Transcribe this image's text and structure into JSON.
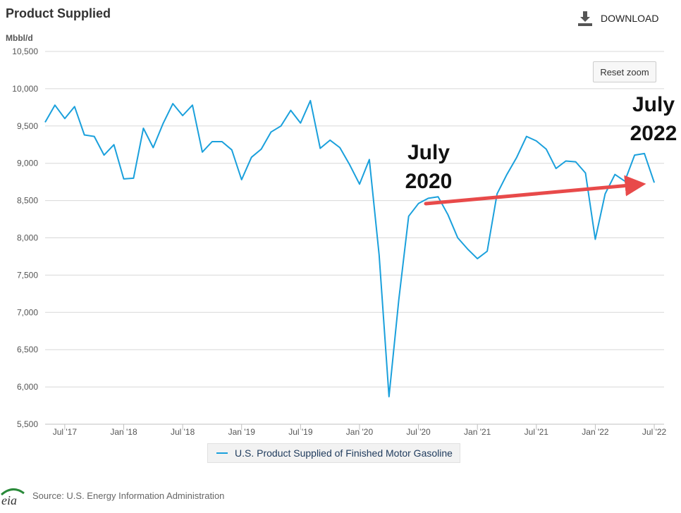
{
  "header": {
    "title": "Product Supplied",
    "download_label": "DOWNLOAD",
    "reset_zoom_label": "Reset zoom"
  },
  "footer": {
    "source": "Source: U.S. Energy Information Administration",
    "logo_icon": "eia-logo-icon"
  },
  "legend": {
    "entries": [
      {
        "label": "U.S. Product Supplied of Finished Motor Gasoline",
        "color": "#1aa0dc"
      }
    ]
  },
  "annotations": {
    "left_top": "July",
    "left_bottom": "2020",
    "right_top": "July",
    "right_bottom": "2022",
    "arrow_color": "#e84a4a"
  },
  "chart_data": {
    "type": "line",
    "ylabel": "Mbbl/d",
    "ylim": [
      5500,
      10500
    ],
    "yticks": [
      5500,
      6000,
      6500,
      7000,
      7500,
      8000,
      8500,
      9000,
      9500,
      10000,
      10500
    ],
    "ytick_labels": [
      "5,500",
      "6,000",
      "6,500",
      "7,000",
      "7,500",
      "8,000",
      "8,500",
      "9,000",
      "9,500",
      "10,000",
      "10,500"
    ],
    "x_range": [
      "2017-05",
      "2022-08"
    ],
    "xtick_labels": [
      "Jul '17",
      "Jan '18",
      "Jul '18",
      "Jan '19",
      "Jul '19",
      "Jan '20",
      "Jul '20",
      "Jan '21",
      "Jul '21",
      "Jan '22",
      "Jul '22"
    ],
    "xtick_months": [
      "2017-07",
      "2018-01",
      "2018-07",
      "2019-01",
      "2019-07",
      "2020-01",
      "2020-07",
      "2021-01",
      "2021-07",
      "2022-01",
      "2022-07"
    ],
    "grid": true,
    "legend_position": "bottom",
    "series": [
      {
        "name": "U.S. Product Supplied of Finished Motor Gasoline",
        "color": "#1aa0dc",
        "x": [
          "2017-05",
          "2017-06",
          "2017-07",
          "2017-08",
          "2017-09",
          "2017-10",
          "2017-11",
          "2017-12",
          "2018-01",
          "2018-02",
          "2018-03",
          "2018-04",
          "2018-05",
          "2018-06",
          "2018-07",
          "2018-08",
          "2018-09",
          "2018-10",
          "2018-11",
          "2018-12",
          "2019-01",
          "2019-02",
          "2019-03",
          "2019-04",
          "2019-05",
          "2019-06",
          "2019-07",
          "2019-08",
          "2019-09",
          "2019-10",
          "2019-11",
          "2019-12",
          "2020-01",
          "2020-02",
          "2020-03",
          "2020-04",
          "2020-05",
          "2020-06",
          "2020-07",
          "2020-08",
          "2020-09",
          "2020-10",
          "2020-11",
          "2020-12",
          "2021-01",
          "2021-02",
          "2021-03",
          "2021-04",
          "2021-05",
          "2021-06",
          "2021-07",
          "2021-08",
          "2021-09",
          "2021-10",
          "2021-11",
          "2021-12",
          "2022-01",
          "2022-02",
          "2022-03",
          "2022-04",
          "2022-05",
          "2022-06",
          "2022-07"
        ],
        "values": [
          9550,
          9780,
          9600,
          9760,
          9380,
          9360,
          9110,
          9250,
          8790,
          8800,
          9470,
          9210,
          9530,
          9800,
          9640,
          9780,
          9150,
          9290,
          9290,
          9180,
          8780,
          9080,
          9190,
          9420,
          9500,
          9710,
          9540,
          9840,
          9200,
          9310,
          9210,
          8980,
          8720,
          9050,
          7770,
          5870,
          7170,
          8290,
          8460,
          8530,
          8550,
          8310,
          8000,
          7850,
          7720,
          7820,
          8590,
          8850,
          9080,
          9360,
          9300,
          9190,
          8930,
          9030,
          9020,
          8870,
          7980,
          8590,
          8850,
          8760,
          9110,
          9130,
          8740
        ]
      }
    ]
  }
}
